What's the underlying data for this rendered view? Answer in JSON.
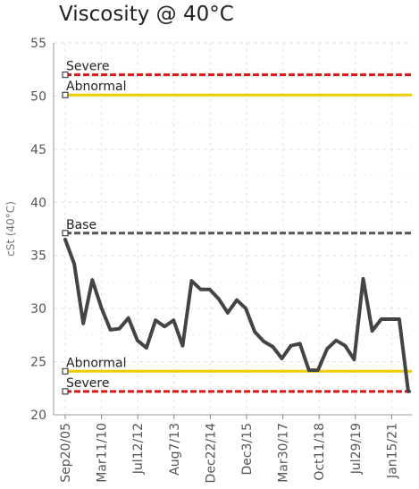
{
  "chart_data": {
    "type": "line",
    "title": "Viscosity @ 40°C",
    "ylabel": "cSt (40°C)",
    "xlabel": "",
    "ylim": [
      20,
      55
    ],
    "yticks": [
      20,
      25,
      30,
      35,
      40,
      45,
      50,
      55
    ],
    "grid": true,
    "x_tick_labels": [
      "Sep20/05",
      "Mar11/10",
      "Jul12/12",
      "Aug7/13",
      "Dec22/14",
      "Dec3/15",
      "Mar30/17",
      "Oct11/18",
      "Jul29/19",
      "Jan15/21"
    ],
    "thresholds": [
      {
        "label": "Severe",
        "value": 52,
        "color": "#ee1111",
        "style": "dashed"
      },
      {
        "label": "Abnormal",
        "value": 50.1,
        "color": "#eecc00",
        "style": "solid"
      },
      {
        "label": "Base",
        "value": 37.1,
        "color": "#555555",
        "style": "dashed"
      },
      {
        "label": "Abnormal",
        "value": 24.1,
        "color": "#eecc00",
        "style": "solid"
      },
      {
        "label": "Severe",
        "value": 22.2,
        "color": "#ee1111",
        "style": "dashed"
      }
    ],
    "series": [
      {
        "color": "#444444",
        "values": [
          36.5,
          34.2,
          28.6,
          32.7,
          30.1,
          28.0,
          28.1,
          29.1,
          27.0,
          26.3,
          28.9,
          28.3,
          28.9,
          26.5,
          32.6,
          31.8,
          31.8,
          30.9,
          29.6,
          30.8,
          30.0,
          27.8,
          26.9,
          26.4,
          25.3,
          26.5,
          26.7,
          24.2,
          24.2,
          26.2,
          27.0,
          26.5,
          25.2,
          32.8,
          27.9,
          29.0,
          29.0,
          29.0,
          22.2
        ]
      }
    ]
  }
}
